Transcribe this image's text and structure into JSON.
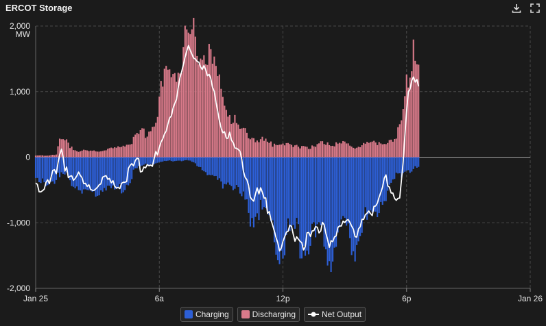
{
  "header": {
    "title": "ERCOT Storage",
    "download_icon": "download-icon",
    "fullscreen_icon": "fullscreen-icon"
  },
  "colors": {
    "charging": "#2d5fd6",
    "discharging": "#d97a8a",
    "net_output": "#ffffff",
    "grid": "#4a4a4a",
    "background": "#1b1b1b"
  },
  "legend": {
    "charging": "Charging",
    "discharging": "Discharging",
    "net_output": "Net Output"
  },
  "chart_data": {
    "type": "bar",
    "y_unit": "MW",
    "ylim": [
      -2000,
      2000
    ],
    "y_ticks": [
      {
        "value": 2000,
        "label": "2,000"
      },
      {
        "value": 1000,
        "label": "1,000"
      },
      {
        "value": 0,
        "label": "0"
      },
      {
        "value": -1000,
        "label": "-1,000"
      },
      {
        "value": -2000,
        "label": "-2,000"
      }
    ],
    "x_range_hours": [
      0,
      24
    ],
    "x_ticks": [
      {
        "hour": 0,
        "label": "Jan 25"
      },
      {
        "hour": 6,
        "label": "6a"
      },
      {
        "hour": 12,
        "label": "12p"
      },
      {
        "hour": 18,
        "label": "6p"
      },
      {
        "hour": 24,
        "label": "Jan 26"
      }
    ],
    "grid": true,
    "legend_position": "bottom",
    "interval_minutes": 5,
    "series": [
      {
        "name": "Charging",
        "type": "bar",
        "keypoints": [
          [
            0,
            -420
          ],
          [
            1,
            -320
          ],
          [
            1.5,
            -280
          ],
          [
            2,
            -440
          ],
          [
            2.5,
            -600
          ],
          [
            3,
            -500
          ],
          [
            3.5,
            -450
          ],
          [
            4,
            -520
          ],
          [
            4.5,
            -350
          ],
          [
            5,
            -150
          ],
          [
            5.5,
            -100
          ],
          [
            6,
            -80
          ],
          [
            6.5,
            -60
          ],
          [
            7,
            -50
          ],
          [
            7.5,
            -60
          ],
          [
            8,
            -150
          ],
          [
            8.5,
            -280
          ],
          [
            9,
            -400
          ],
          [
            9.5,
            -380
          ],
          [
            10,
            -600
          ],
          [
            10.5,
            -900
          ],
          [
            11,
            -800
          ],
          [
            11.5,
            -1200
          ],
          [
            11.8,
            -1450
          ],
          [
            12.2,
            -1200
          ],
          [
            12.5,
            -1100
          ],
          [
            13,
            -1350
          ],
          [
            13.5,
            -1250
          ],
          [
            14,
            -1100
          ],
          [
            14.2,
            -1500
          ],
          [
            14.6,
            -1200
          ],
          [
            15,
            -1050
          ],
          [
            15.5,
            -1300
          ],
          [
            16,
            -1000
          ],
          [
            16.5,
            -800
          ],
          [
            17,
            -550
          ],
          [
            17.5,
            -300
          ],
          [
            18,
            -200
          ],
          [
            18.5,
            -180
          ]
        ]
      },
      {
        "name": "Discharging",
        "type": "bar",
        "keypoints": [
          [
            0,
            20
          ],
          [
            1,
            40
          ],
          [
            1.2,
            280
          ],
          [
            1.6,
            200
          ],
          [
            2,
            100
          ],
          [
            2.5,
            90
          ],
          [
            3,
            100
          ],
          [
            3.5,
            110
          ],
          [
            4,
            150
          ],
          [
            4.5,
            200
          ],
          [
            5,
            320
          ],
          [
            5.4,
            400
          ],
          [
            5.8,
            500
          ],
          [
            6,
            900
          ],
          [
            6.5,
            1300
          ],
          [
            7,
            1500
          ],
          [
            7.3,
            1800
          ],
          [
            7.6,
            1850
          ],
          [
            8,
            1750
          ],
          [
            8.5,
            1500
          ],
          [
            9,
            1000
          ],
          [
            9.5,
            600
          ],
          [
            10,
            400
          ],
          [
            10.5,
            300
          ],
          [
            11,
            250
          ],
          [
            11.5,
            200
          ],
          [
            12,
            240
          ],
          [
            12.5,
            150
          ],
          [
            13,
            180
          ],
          [
            13.5,
            140
          ],
          [
            14,
            250
          ],
          [
            14.5,
            180
          ],
          [
            15,
            200
          ],
          [
            15.5,
            160
          ],
          [
            16,
            180
          ],
          [
            16.5,
            250
          ],
          [
            17,
            200
          ],
          [
            17.5,
            250
          ],
          [
            17.8,
            700
          ],
          [
            18,
            1300
          ],
          [
            18.3,
            1450
          ],
          [
            18.5,
            1380
          ]
        ]
      },
      {
        "name": "Net Output",
        "type": "line",
        "keypoints": [
          [
            0,
            -400
          ],
          [
            0.5,
            -300
          ],
          [
            1,
            -200
          ],
          [
            1.2,
            100
          ],
          [
            1.6,
            -150
          ],
          [
            2,
            -250
          ],
          [
            2.5,
            -400
          ],
          [
            3,
            -350
          ],
          [
            3.5,
            -300
          ],
          [
            4,
            -400
          ],
          [
            4.5,
            -200
          ],
          [
            5,
            -50
          ],
          [
            5.5,
            -50
          ],
          [
            6,
            100
          ],
          [
            6.5,
            700
          ],
          [
            7,
            1200
          ],
          [
            7.3,
            1650
          ],
          [
            7.6,
            1700
          ],
          [
            8,
            1500
          ],
          [
            8.5,
            1200
          ],
          [
            9,
            550
          ],
          [
            9.5,
            300
          ],
          [
            10,
            0
          ],
          [
            10.5,
            -550
          ],
          [
            11,
            -500
          ],
          [
            11.5,
            -900
          ],
          [
            11.9,
            -1350
          ],
          [
            12.3,
            -1050
          ],
          [
            12.7,
            -1150
          ],
          [
            13,
            -1250
          ],
          [
            13.5,
            -1100
          ],
          [
            14,
            -900
          ],
          [
            14.3,
            -1350
          ],
          [
            14.8,
            -1050
          ],
          [
            15.2,
            -800
          ],
          [
            15.6,
            -1200
          ],
          [
            16,
            -850
          ],
          [
            16.5,
            -650
          ],
          [
            17,
            -300
          ],
          [
            17.3,
            -600
          ],
          [
            17.7,
            -500
          ],
          [
            18,
            800
          ],
          [
            18.3,
            1300
          ],
          [
            18.6,
            1050
          ],
          [
            18.8,
            1200
          ]
        ]
      }
    ]
  }
}
